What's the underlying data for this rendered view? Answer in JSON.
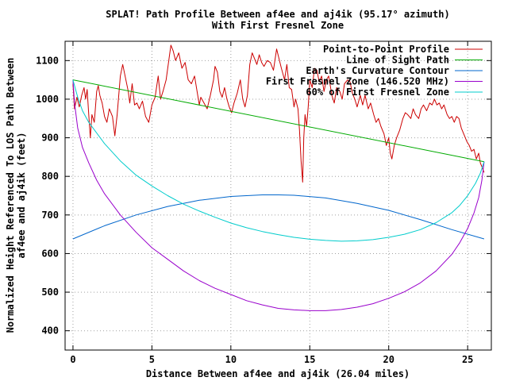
{
  "chart_data": {
    "type": "line",
    "title": "SPLAT! Path Profile Between af4ee and aj4ik (95.17° azimuth)",
    "subtitle": "With First Fresnel Zone",
    "xlabel": "Distance Between af4ee and aj4ik (26.04 miles)",
    "ylabel_line1": "Normalized Height Referenced To LOS Path Between",
    "ylabel_line2": "af4ee and aj4ik (feet)",
    "xlim": [
      -0.5,
      26.5
    ],
    "ylim": [
      350,
      1150
    ],
    "xticks": [
      0,
      5,
      10,
      15,
      20,
      25
    ],
    "yticks": [
      400,
      500,
      600,
      700,
      800,
      900,
      1000,
      1100
    ],
    "grid": true,
    "legend_position": "top-right",
    "series": [
      {
        "name": "Point-to-Point Profile",
        "color": "#cc0000",
        "points": [
          [
            0,
            1040
          ],
          [
            0.1,
            975
          ],
          [
            0.25,
            1005
          ],
          [
            0.4,
            980
          ],
          [
            0.55,
            1010
          ],
          [
            0.7,
            1030
          ],
          [
            0.8,
            1000
          ],
          [
            0.9,
            1025
          ],
          [
            1.0,
            960
          ],
          [
            1.1,
            900
          ],
          [
            1.2,
            960
          ],
          [
            1.35,
            940
          ],
          [
            1.5,
            1020
          ],
          [
            1.6,
            1035
          ],
          [
            1.7,
            1010
          ],
          [
            1.85,
            990
          ],
          [
            2.0,
            955
          ],
          [
            2.15,
            940
          ],
          [
            2.3,
            975
          ],
          [
            2.5,
            955
          ],
          [
            2.65,
            905
          ],
          [
            2.8,
            960
          ],
          [
            3.0,
            1060
          ],
          [
            3.15,
            1090
          ],
          [
            3.3,
            1060
          ],
          [
            3.5,
            1020
          ],
          [
            3.6,
            990
          ],
          [
            3.75,
            1040
          ],
          [
            3.9,
            985
          ],
          [
            4.05,
            990
          ],
          [
            4.2,
            975
          ],
          [
            4.4,
            995
          ],
          [
            4.6,
            955
          ],
          [
            4.8,
            940
          ],
          [
            5.0,
            985
          ],
          [
            5.2,
            1005
          ],
          [
            5.4,
            1060
          ],
          [
            5.55,
            1000
          ],
          [
            5.7,
            1020
          ],
          [
            5.9,
            1050
          ],
          [
            6.05,
            1095
          ],
          [
            6.2,
            1140
          ],
          [
            6.35,
            1125
          ],
          [
            6.5,
            1100
          ],
          [
            6.7,
            1120
          ],
          [
            6.9,
            1080
          ],
          [
            7.1,
            1095
          ],
          [
            7.3,
            1050
          ],
          [
            7.5,
            1040
          ],
          [
            7.7,
            1060
          ],
          [
            7.9,
            1010
          ],
          [
            8.0,
            985
          ],
          [
            8.1,
            1005
          ],
          [
            8.3,
            990
          ],
          [
            8.5,
            975
          ],
          [
            8.7,
            1010
          ],
          [
            8.9,
            1050
          ],
          [
            9.0,
            1085
          ],
          [
            9.15,
            1070
          ],
          [
            9.3,
            1020
          ],
          [
            9.45,
            1005
          ],
          [
            9.6,
            1030
          ],
          [
            9.75,
            1000
          ],
          [
            9.9,
            980
          ],
          [
            10.05,
            965
          ],
          [
            10.2,
            990
          ],
          [
            10.4,
            1015
          ],
          [
            10.6,
            1050
          ],
          [
            10.75,
            1000
          ],
          [
            10.9,
            980
          ],
          [
            11.05,
            1010
          ],
          [
            11.2,
            1090
          ],
          [
            11.35,
            1120
          ],
          [
            11.5,
            1105
          ],
          [
            11.65,
            1090
          ],
          [
            11.8,
            1115
          ],
          [
            11.95,
            1095
          ],
          [
            12.1,
            1085
          ],
          [
            12.3,
            1100
          ],
          [
            12.5,
            1095
          ],
          [
            12.7,
            1075
          ],
          [
            12.9,
            1130
          ],
          [
            13.05,
            1105
          ],
          [
            13.2,
            1080
          ],
          [
            13.4,
            1050
          ],
          [
            13.55,
            1090
          ],
          [
            13.7,
            1030
          ],
          [
            13.85,
            1025
          ],
          [
            14.0,
            980
          ],
          [
            14.1,
            1000
          ],
          [
            14.25,
            975
          ],
          [
            14.35,
            920
          ],
          [
            14.45,
            840
          ],
          [
            14.55,
            785
          ],
          [
            14.62,
            900
          ],
          [
            14.7,
            960
          ],
          [
            14.8,
            930
          ],
          [
            14.9,
            980
          ],
          [
            15.0,
            1050
          ],
          [
            15.15,
            1030
          ],
          [
            15.3,
            1080
          ],
          [
            15.45,
            1075
          ],
          [
            15.6,
            1045
          ],
          [
            15.75,
            1060
          ],
          [
            15.9,
            1020
          ],
          [
            16.05,
            1050
          ],
          [
            16.2,
            1060
          ],
          [
            16.4,
            1010
          ],
          [
            16.55,
            990
          ],
          [
            16.7,
            1030
          ],
          [
            16.9,
            1020
          ],
          [
            17.05,
            1000
          ],
          [
            17.2,
            1040
          ],
          [
            17.4,
            1050
          ],
          [
            17.55,
            1045
          ],
          [
            17.7,
            1015
          ],
          [
            17.85,
            1000
          ],
          [
            18.0,
            980
          ],
          [
            18.2,
            1010
          ],
          [
            18.35,
            985
          ],
          [
            18.5,
            1010
          ],
          [
            18.7,
            975
          ],
          [
            18.85,
            990
          ],
          [
            19.05,
            960
          ],
          [
            19.2,
            940
          ],
          [
            19.35,
            950
          ],
          [
            19.5,
            930
          ],
          [
            19.7,
            910
          ],
          [
            19.85,
            880
          ],
          [
            20.0,
            900
          ],
          [
            20.1,
            860
          ],
          [
            20.2,
            845
          ],
          [
            20.35,
            880
          ],
          [
            20.5,
            900
          ],
          [
            20.7,
            920
          ],
          [
            20.9,
            950
          ],
          [
            21.05,
            965
          ],
          [
            21.2,
            960
          ],
          [
            21.4,
            950
          ],
          [
            21.55,
            975
          ],
          [
            21.7,
            960
          ],
          [
            21.9,
            950
          ],
          [
            22.05,
            975
          ],
          [
            22.2,
            985
          ],
          [
            22.4,
            970
          ],
          [
            22.6,
            990
          ],
          [
            22.75,
            985
          ],
          [
            22.9,
            1000
          ],
          [
            23.05,
            985
          ],
          [
            23.2,
            990
          ],
          [
            23.35,
            975
          ],
          [
            23.5,
            985
          ],
          [
            23.7,
            960
          ],
          [
            23.85,
            950
          ],
          [
            24.0,
            955
          ],
          [
            24.15,
            940
          ],
          [
            24.3,
            955
          ],
          [
            24.45,
            950
          ],
          [
            24.6,
            925
          ],
          [
            24.8,
            905
          ],
          [
            24.95,
            890
          ],
          [
            25.1,
            880
          ],
          [
            25.25,
            865
          ],
          [
            25.4,
            870
          ],
          [
            25.55,
            845
          ],
          [
            25.7,
            860
          ],
          [
            25.8,
            835
          ],
          [
            25.9,
            825
          ],
          [
            26.04,
            810
          ]
        ]
      },
      {
        "name": "Line of Sight Path",
        "color": "#00aa00",
        "points": [
          [
            0,
            1050
          ],
          [
            26.04,
            838
          ]
        ]
      },
      {
        "name": "Earth's Curvature Contour",
        "color": "#0066cc",
        "points": [
          [
            0,
            638
          ],
          [
            2,
            672
          ],
          [
            4,
            700
          ],
          [
            6,
            722
          ],
          [
            8,
            738
          ],
          [
            10,
            748
          ],
          [
            12,
            752
          ],
          [
            13.02,
            752
          ],
          [
            14,
            751
          ],
          [
            16,
            744
          ],
          [
            18,
            730
          ],
          [
            20,
            712
          ],
          [
            22,
            688
          ],
          [
            24,
            662
          ],
          [
            26.04,
            638
          ]
        ]
      },
      {
        "name": "First Fresnel Zone (146.520 MHz)",
        "color": "#9900cc",
        "points": [
          [
            0,
            1050
          ],
          [
            0.1,
            990
          ],
          [
            0.3,
            925
          ],
          [
            0.6,
            875
          ],
          [
            1,
            835
          ],
          [
            1.5,
            790
          ],
          [
            2,
            755
          ],
          [
            3,
            700
          ],
          [
            4,
            655
          ],
          [
            5,
            615
          ],
          [
            6,
            585
          ],
          [
            7,
            555
          ],
          [
            8,
            530
          ],
          [
            9,
            510
          ],
          [
            10,
            494
          ],
          [
            11,
            478
          ],
          [
            12,
            467
          ],
          [
            13,
            458
          ],
          [
            14,
            454
          ],
          [
            15,
            452
          ],
          [
            16,
            452
          ],
          [
            17,
            455
          ],
          [
            18,
            461
          ],
          [
            19,
            470
          ],
          [
            20,
            484
          ],
          [
            21,
            501
          ],
          [
            22,
            524
          ],
          [
            23,
            555
          ],
          [
            24,
            598
          ],
          [
            24.5,
            628
          ],
          [
            25,
            665
          ],
          [
            25.4,
            705
          ],
          [
            25.7,
            745
          ],
          [
            25.9,
            790
          ],
          [
            26.04,
            838
          ]
        ]
      },
      {
        "name": "60% of First Fresnel Zone",
        "color": "#00cccc",
        "points": [
          [
            0,
            1050
          ],
          [
            0.3,
            1005
          ],
          [
            0.6,
            970
          ],
          [
            1,
            940
          ],
          [
            2,
            885
          ],
          [
            3,
            840
          ],
          [
            4,
            803
          ],
          [
            5,
            775
          ],
          [
            6,
            750
          ],
          [
            7,
            728
          ],
          [
            8,
            710
          ],
          [
            9,
            694
          ],
          [
            10,
            679
          ],
          [
            11,
            667
          ],
          [
            12,
            657
          ],
          [
            13,
            649
          ],
          [
            14,
            642
          ],
          [
            15,
            637
          ],
          [
            16,
            634
          ],
          [
            17,
            632
          ],
          [
            18,
            633
          ],
          [
            19,
            636
          ],
          [
            20,
            642
          ],
          [
            21,
            650
          ],
          [
            22,
            662
          ],
          [
            23,
            680
          ],
          [
            24,
            706
          ],
          [
            24.5,
            725
          ],
          [
            25,
            750
          ],
          [
            25.5,
            782
          ],
          [
            25.8,
            808
          ],
          [
            26.04,
            838
          ]
        ]
      }
    ]
  }
}
